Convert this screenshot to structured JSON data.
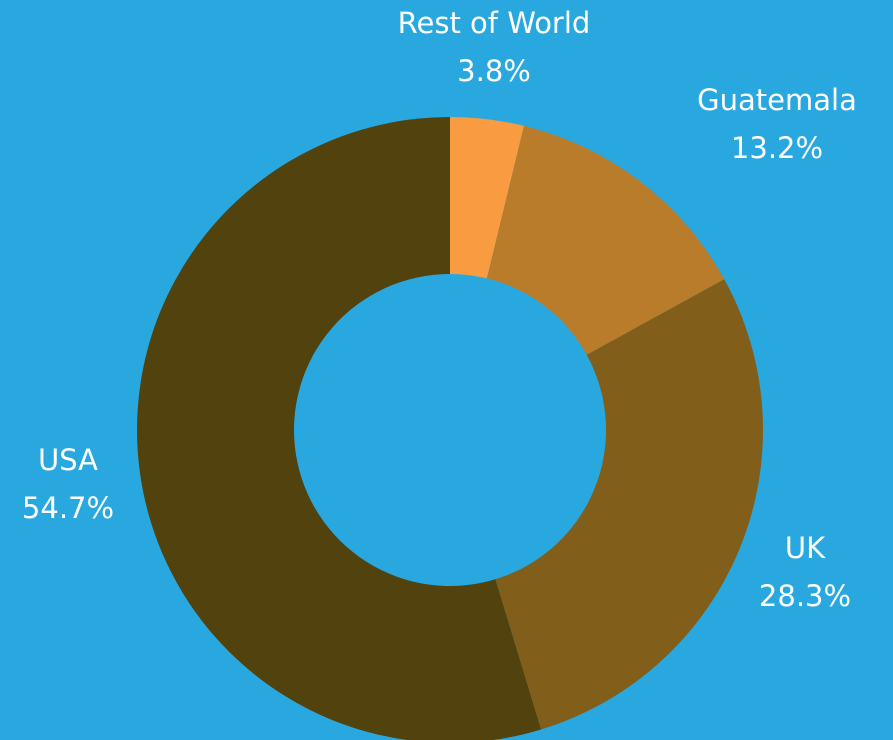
{
  "chart_data": {
    "type": "donut",
    "categories": [
      "Rest of World",
      "Guatemala",
      "UK",
      "USA"
    ],
    "values": [
      3.8,
      13.2,
      28.3,
      54.7
    ],
    "value_labels": [
      "3.8%",
      "13.2%",
      "28.3%",
      "54.7%"
    ],
    "colors": [
      "#f99b40",
      "#b97c2a",
      "#825e1b",
      "#52420d"
    ]
  }
}
